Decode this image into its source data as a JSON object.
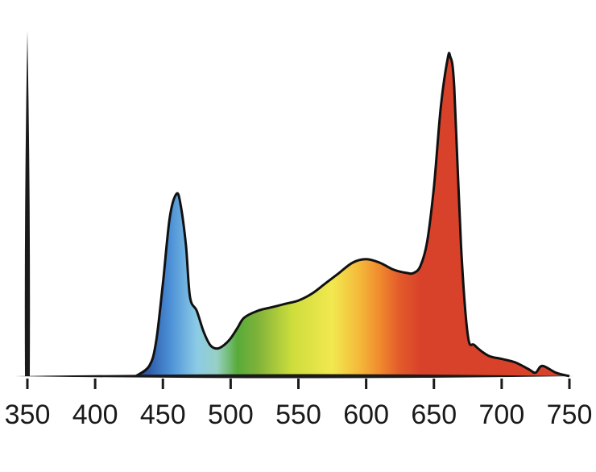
{
  "chart_data": {
    "type": "area",
    "title": "",
    "xlabel": "",
    "ylabel": "",
    "xlim": [
      350,
      750
    ],
    "ylim": [
      0,
      1.0
    ],
    "grid": false,
    "legend": "none",
    "x_ticks": [
      "350",
      "400",
      "450",
      "500",
      "550",
      "600",
      "650",
      "700",
      "750"
    ],
    "x": [
      430,
      440,
      445,
      450,
      455,
      460,
      463,
      467,
      470,
      475,
      480,
      485,
      490,
      495,
      500,
      505,
      510,
      520,
      530,
      540,
      550,
      560,
      570,
      580,
      590,
      600,
      610,
      620,
      630,
      635,
      640,
      645,
      650,
      655,
      660,
      662,
      665,
      670,
      675,
      680,
      690,
      700,
      710,
      720,
      725,
      730,
      740,
      750
    ],
    "series": [
      {
        "values": [
          0.0,
          0.03,
          0.1,
          0.27,
          0.46,
          0.53,
          0.5,
          0.38,
          0.23,
          0.19,
          0.13,
          0.09,
          0.08,
          0.09,
          0.11,
          0.14,
          0.17,
          0.19,
          0.2,
          0.21,
          0.22,
          0.24,
          0.27,
          0.3,
          0.33,
          0.34,
          0.33,
          0.31,
          0.3,
          0.3,
          0.32,
          0.39,
          0.55,
          0.78,
          0.92,
          0.93,
          0.84,
          0.38,
          0.12,
          0.09,
          0.06,
          0.05,
          0.04,
          0.02,
          0.01,
          0.03,
          0.01,
          0.0
        ]
      }
    ],
    "gradient_stops": [
      {
        "nm": 430,
        "color": "#1f3c8e"
      },
      {
        "nm": 455,
        "color": "#4a8fd6"
      },
      {
        "nm": 475,
        "color": "#8ccbe6"
      },
      {
        "nm": 490,
        "color": "#97d0c4"
      },
      {
        "nm": 505,
        "color": "#58ab3a"
      },
      {
        "nm": 520,
        "color": "#7fb23a"
      },
      {
        "nm": 545,
        "color": "#cddd3c"
      },
      {
        "nm": 575,
        "color": "#f2e84f"
      },
      {
        "nm": 595,
        "color": "#f4b93a"
      },
      {
        "nm": 610,
        "color": "#f08a2e"
      },
      {
        "nm": 625,
        "color": "#e25a2a"
      },
      {
        "nm": 640,
        "color": "#d9422a"
      },
      {
        "nm": 750,
        "color": "#d9422a"
      }
    ],
    "colors": {
      "outline": "#111111",
      "axis": "#1a1a1a"
    }
  }
}
